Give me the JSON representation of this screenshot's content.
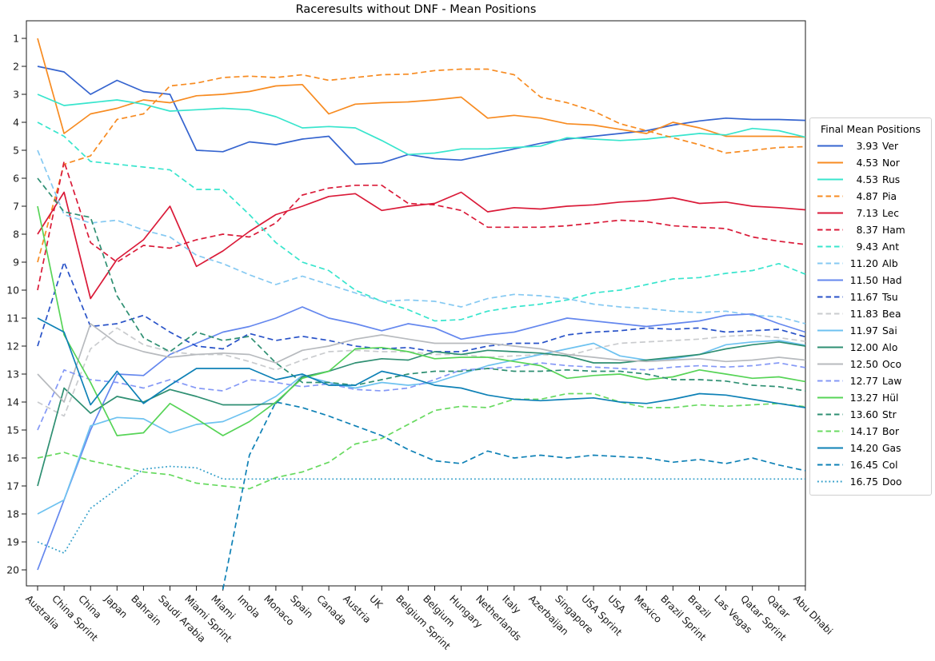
{
  "title": "Raceresults without DNF - Mean Positions",
  "legend": {
    "title": "Final Mean Positions"
  },
  "chart_data": {
    "type": "line",
    "title": "Raceresults without DNF - Mean Positions",
    "xlabel": "",
    "ylabel": "",
    "legend_position": "right-outside",
    "grid": false,
    "y_axis": {
      "min": 1,
      "max": 20,
      "inverted": true,
      "tick_labels": [
        "1",
        "2",
        "3",
        "4",
        "5",
        "6",
        "7",
        "8",
        "9",
        "10",
        "11",
        "12",
        "13",
        "14",
        "15",
        "16",
        "17",
        "18",
        "19",
        "20"
      ]
    },
    "categories": [
      "Australia",
      "China Sprint",
      "China",
      "Japan",
      "Bahrain",
      "Saudi Arabia",
      "Miami Sprint",
      "Miami",
      "Imola",
      "Monaco",
      "Spain",
      "Canada",
      "Austria",
      "UK",
      "Belgium Sprint",
      "Belgium",
      "Hungary",
      "Netherlands",
      "Italy",
      "Azerbaijan",
      "Singapore",
      "USA Sprint",
      "USA",
      "Mexico",
      "Brazil Sprint",
      "Brazil",
      "Las Vegas",
      "Qatar Sprint",
      "Qatar",
      "Abu Dhabi"
    ],
    "series": [
      {
        "abbr": "Ver",
        "final": "3.93",
        "label": "3.93 Ver",
        "color": "#3564cf",
        "style": "solid",
        "values": [
          2.0,
          2.2,
          3.0,
          2.5,
          2.9,
          3.0,
          5.0,
          5.05,
          4.7,
          4.8,
          4.6,
          4.5,
          5.5,
          5.45,
          5.15,
          5.3,
          5.35,
          5.15,
          4.95,
          4.75,
          4.6,
          4.5,
          4.4,
          4.3,
          4.1,
          3.95,
          3.85,
          3.9,
          3.9,
          3.93
        ]
      },
      {
        "abbr": "Nor",
        "final": "4.53",
        "label": "4.53 Nor",
        "color": "#f78b21",
        "style": "solid",
        "values": [
          1.0,
          4.4,
          3.7,
          3.5,
          3.2,
          3.3,
          3.05,
          3.0,
          2.9,
          2.7,
          2.65,
          3.7,
          3.35,
          3.3,
          3.27,
          3.2,
          3.1,
          3.85,
          3.75,
          3.85,
          4.05,
          4.1,
          4.25,
          4.4,
          4.0,
          4.2,
          4.5,
          4.5,
          4.5,
          4.53
        ]
      },
      {
        "abbr": "Rus",
        "final": "4.53",
        "label": "4.53 Rus",
        "color": "#38e5cd",
        "style": "solid",
        "values": [
          3.0,
          3.4,
          3.3,
          3.2,
          3.35,
          3.6,
          3.55,
          3.5,
          3.55,
          3.8,
          4.2,
          4.15,
          4.2,
          4.65,
          5.15,
          5.1,
          4.95,
          4.95,
          4.9,
          4.85,
          4.55,
          4.6,
          4.65,
          4.6,
          4.5,
          4.4,
          4.45,
          4.22,
          4.3,
          4.53
        ]
      },
      {
        "abbr": "Pia",
        "final": "4.87",
        "label": "4.87 Pia",
        "color": "#f78b21",
        "style": "dashed",
        "values": [
          9.0,
          5.5,
          5.2,
          3.9,
          3.7,
          2.7,
          2.6,
          2.4,
          2.35,
          2.4,
          2.3,
          2.5,
          2.4,
          2.3,
          2.28,
          2.15,
          2.1,
          2.1,
          2.3,
          3.1,
          3.3,
          3.6,
          4.05,
          4.3,
          4.55,
          4.8,
          5.1,
          5.0,
          4.9,
          4.87
        ]
      },
      {
        "abbr": "Lec",
        "final": "7.13",
        "label": "7.13 Lec",
        "color": "#da1a38",
        "style": "solid",
        "values": [
          8.0,
          6.5,
          10.3,
          8.9,
          8.2,
          7.0,
          9.15,
          8.6,
          7.9,
          7.3,
          7.0,
          6.65,
          6.55,
          7.15,
          7.0,
          6.9,
          6.5,
          7.2,
          7.05,
          7.1,
          7.0,
          6.95,
          6.85,
          6.8,
          6.7,
          6.9,
          6.85,
          7.0,
          7.05,
          7.13
        ]
      },
      {
        "abbr": "Ham",
        "final": "8.37",
        "label": "8.37 Ham",
        "color": "#da1a38",
        "style": "dashed",
        "values": [
          10.0,
          5.4,
          8.3,
          9.0,
          8.4,
          8.5,
          8.2,
          8.0,
          8.1,
          7.6,
          6.6,
          6.35,
          6.25,
          6.25,
          6.9,
          6.95,
          7.15,
          7.75,
          7.75,
          7.75,
          7.7,
          7.6,
          7.5,
          7.55,
          7.7,
          7.75,
          7.8,
          8.1,
          8.25,
          8.37
        ]
      },
      {
        "abbr": "Ant",
        "final": "9.43",
        "label": "9.43 Ant",
        "color": "#38e5cd",
        "style": "dashed",
        "values": [
          4.0,
          4.5,
          5.4,
          5.5,
          5.6,
          5.7,
          6.4,
          6.4,
          7.3,
          8.3,
          9.0,
          9.3,
          10.0,
          10.4,
          10.7,
          11.1,
          11.05,
          10.75,
          10.6,
          10.5,
          10.35,
          10.1,
          10.0,
          9.8,
          9.6,
          9.55,
          9.4,
          9.3,
          9.05,
          9.43
        ]
      },
      {
        "abbr": "Alb",
        "final": "11.20",
        "label": "11.20 Alb",
        "color": "#85c9f2",
        "style": "dashed",
        "values": [
          5.0,
          7.3,
          7.6,
          7.5,
          7.85,
          8.1,
          8.75,
          9.05,
          9.45,
          9.8,
          9.5,
          9.8,
          10.1,
          10.4,
          10.35,
          10.4,
          10.6,
          10.3,
          10.15,
          10.2,
          10.3,
          10.5,
          10.6,
          10.65,
          10.75,
          10.8,
          10.75,
          10.9,
          10.95,
          11.2
        ]
      },
      {
        "abbr": "Had",
        "final": "11.50",
        "label": "11.50 Had",
        "color": "#6487ee",
        "style": "solid",
        "values": [
          20.0,
          17.5,
          15.0,
          13.0,
          13.05,
          12.3,
          11.9,
          11.5,
          11.3,
          11.0,
          10.6,
          11.0,
          11.2,
          11.45,
          11.2,
          11.35,
          11.75,
          11.6,
          11.5,
          11.25,
          11.0,
          11.1,
          11.2,
          11.3,
          11.2,
          11.1,
          10.9,
          10.85,
          11.2,
          11.5
        ]
      },
      {
        "abbr": "Tsu",
        "final": "11.67",
        "label": "11.67 Tsu",
        "color": "#2852c8",
        "style": "dashed",
        "values": [
          12.0,
          9.0,
          11.3,
          11.2,
          10.9,
          11.5,
          12.0,
          12.1,
          11.55,
          11.8,
          11.65,
          11.8,
          12.0,
          12.1,
          12.05,
          12.2,
          12.2,
          12.0,
          11.9,
          11.9,
          11.6,
          11.5,
          11.45,
          11.35,
          11.4,
          11.35,
          11.5,
          11.45,
          11.4,
          11.67
        ]
      },
      {
        "abbr": "Bea",
        "final": "11.83",
        "label": "11.83 Bea",
        "color": "#c9cbce",
        "style": "dashed",
        "values": [
          14.0,
          14.5,
          12.1,
          11.35,
          11.95,
          12.2,
          12.3,
          12.3,
          12.55,
          12.85,
          12.5,
          12.2,
          12.15,
          12.2,
          12.2,
          12.3,
          12.3,
          12.4,
          12.35,
          12.3,
          12.35,
          12.1,
          11.9,
          11.85,
          11.8,
          11.75,
          11.65,
          11.6,
          11.7,
          11.83
        ]
      },
      {
        "abbr": "Sai",
        "final": "11.97",
        "label": "11.97 Sai",
        "color": "#6ec2f0",
        "style": "solid",
        "values": [
          18.0,
          17.5,
          14.85,
          14.55,
          14.6,
          15.1,
          14.8,
          14.7,
          14.3,
          13.8,
          13.05,
          13.3,
          13.5,
          13.3,
          13.4,
          13.3,
          13.0,
          12.7,
          12.5,
          12.3,
          12.1,
          11.9,
          12.35,
          12.5,
          12.45,
          12.3,
          11.95,
          11.85,
          11.8,
          11.97
        ]
      },
      {
        "abbr": "Alo",
        "final": "12.00",
        "label": "12.00 Alo",
        "color": "#2e8f72",
        "style": "solid",
        "values": [
          17.0,
          13.5,
          14.4,
          13.8,
          14.0,
          13.55,
          13.8,
          14.1,
          14.1,
          14.05,
          13.1,
          12.9,
          12.6,
          12.45,
          12.5,
          12.2,
          12.3,
          12.15,
          12.2,
          12.25,
          12.35,
          12.6,
          12.6,
          12.5,
          12.4,
          12.3,
          12.1,
          11.95,
          11.85,
          12.0
        ]
      },
      {
        "abbr": "Oco",
        "final": "12.50",
        "label": "12.50 Oco",
        "color": "#b7babe",
        "style": "solid",
        "values": [
          13.0,
          14.0,
          11.2,
          11.9,
          12.2,
          12.4,
          12.3,
          12.25,
          12.3,
          12.6,
          12.15,
          12.0,
          11.75,
          11.6,
          11.75,
          11.9,
          11.9,
          11.9,
          12.0,
          12.1,
          12.3,
          12.4,
          12.5,
          12.55,
          12.5,
          12.45,
          12.55,
          12.5,
          12.4,
          12.5
        ]
      },
      {
        "abbr": "Law",
        "final": "12.77",
        "label": "12.77 Law",
        "color": "#8498f6",
        "style": "dashed",
        "values": [
          15.0,
          12.85,
          13.2,
          13.3,
          13.5,
          13.2,
          13.5,
          13.6,
          13.2,
          13.3,
          13.45,
          13.35,
          13.55,
          13.6,
          13.5,
          13.2,
          12.85,
          12.8,
          12.75,
          12.6,
          12.7,
          12.75,
          12.8,
          12.85,
          12.75,
          12.7,
          12.75,
          12.7,
          12.6,
          12.77
        ]
      },
      {
        "abbr": "Hül",
        "final": "13.27",
        "label": "13.27 Hül",
        "color": "#57d457",
        "style": "solid",
        "values": [
          7.0,
          11.6,
          13.3,
          15.2,
          15.1,
          14.05,
          14.6,
          15.2,
          14.7,
          14.0,
          13.15,
          12.9,
          12.1,
          12.05,
          12.2,
          12.45,
          12.4,
          12.4,
          12.55,
          12.7,
          13.15,
          13.05,
          13.0,
          13.2,
          13.1,
          12.85,
          13.0,
          13.15,
          13.1,
          13.27
        ]
      },
      {
        "abbr": "Str",
        "final": "13.60",
        "label": "13.60 Str",
        "color": "#2e8f72",
        "style": "dashed",
        "values": [
          6.0,
          7.2,
          7.4,
          10.2,
          11.7,
          12.2,
          11.5,
          11.8,
          11.65,
          12.6,
          13.3,
          13.3,
          13.4,
          13.2,
          13.0,
          12.9,
          12.9,
          12.8,
          12.9,
          12.9,
          12.85,
          12.9,
          12.9,
          13.0,
          13.2,
          13.2,
          13.25,
          13.4,
          13.45,
          13.6
        ]
      },
      {
        "abbr": "Bor",
        "final": "14.17",
        "label": "14.17 Bor",
        "color": "#68da60",
        "style": "dashed",
        "values": [
          16.0,
          15.8,
          16.1,
          16.3,
          16.5,
          16.6,
          16.9,
          17.0,
          17.1,
          16.7,
          16.5,
          16.15,
          15.5,
          15.3,
          14.8,
          14.3,
          14.15,
          14.2,
          13.9,
          13.9,
          13.7,
          13.7,
          14.0,
          14.2,
          14.2,
          14.1,
          14.15,
          14.1,
          14.05,
          14.17
        ]
      },
      {
        "abbr": "Gas",
        "final": "14.20",
        "label": "14.20 Gas",
        "color": "#0e81b6",
        "style": "solid",
        "values": [
          11.0,
          11.5,
          14.1,
          12.9,
          14.05,
          13.4,
          12.8,
          12.8,
          12.8,
          13.2,
          13.0,
          13.4,
          13.4,
          12.9,
          13.1,
          13.4,
          13.5,
          13.75,
          13.9,
          13.95,
          13.9,
          13.85,
          14.0,
          14.05,
          13.9,
          13.7,
          13.75,
          13.9,
          14.05,
          14.2
        ]
      },
      {
        "abbr": "Col",
        "final": "16.45",
        "label": "16.45 Col",
        "color": "#0e81b6",
        "style": "dashed",
        "values": [
          null,
          null,
          null,
          null,
          null,
          null,
          null,
          20.7,
          15.9,
          14.0,
          14.2,
          14.5,
          14.85,
          15.2,
          15.7,
          16.1,
          16.2,
          15.75,
          16.0,
          15.9,
          16.0,
          15.9,
          15.95,
          16.0,
          16.15,
          16.05,
          16.2,
          16.0,
          16.25,
          16.45
        ]
      },
      {
        "abbr": "Doo",
        "final": "16.75",
        "label": "16.75 Doo",
        "color": "#2d9cc8",
        "style": "dotted",
        "values": [
          19.0,
          19.4,
          17.8,
          17.1,
          16.4,
          16.3,
          16.35,
          16.75,
          16.75,
          16.75,
          16.75,
          16.75,
          16.75,
          16.75,
          16.75,
          16.75,
          16.75,
          16.75,
          16.75,
          16.75,
          16.75,
          16.75,
          16.75,
          16.75,
          16.75,
          16.75,
          16.75,
          16.75,
          16.75,
          16.75
        ]
      }
    ]
  }
}
